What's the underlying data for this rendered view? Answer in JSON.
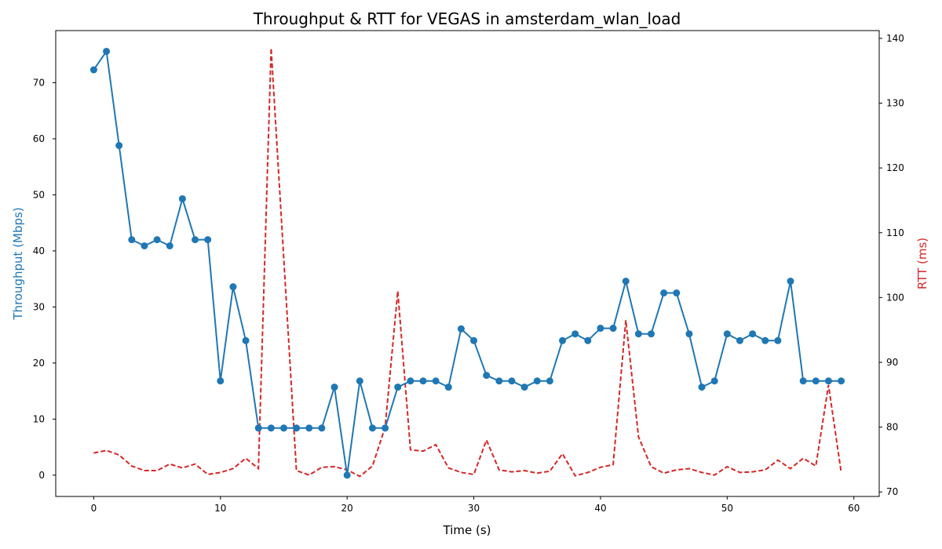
{
  "chart_data": {
    "type": "line",
    "title": "Throughput & RTT for VEGAS in amsterdam_wlan_load",
    "xlabel": "Time (s)",
    "ylabel_left": "Throughput (Mbps)",
    "ylabel_right": "RTT (ms)",
    "xlim": [
      -3,
      62
    ],
    "ylim_left": [
      -3.8,
      79.3
    ],
    "ylim_right": [
      69.3,
      141.2
    ],
    "x_ticks": [
      0,
      10,
      20,
      30,
      40,
      50,
      60
    ],
    "y_left_ticks": [
      0,
      10,
      20,
      30,
      40,
      50,
      60,
      70
    ],
    "y_right_ticks": [
      70,
      80,
      90,
      100,
      110,
      120,
      130,
      140
    ],
    "grid": false,
    "colors": {
      "throughput": "#1f77b4",
      "rtt": "#d62728"
    },
    "x": [
      0,
      1,
      2,
      3,
      4,
      5,
      6,
      7,
      8,
      9,
      10,
      11,
      12,
      13,
      14,
      15,
      16,
      17,
      18,
      19,
      20,
      21,
      22,
      23,
      24,
      25,
      26,
      27,
      28,
      29,
      30,
      31,
      32,
      33,
      34,
      35,
      36,
      37,
      38,
      39,
      40,
      41,
      42,
      43,
      44,
      45,
      46,
      47,
      48,
      49,
      50,
      51,
      52,
      53,
      54,
      55,
      56,
      57,
      58,
      59
    ],
    "series": [
      {
        "name": "Throughput (Mbps)",
        "axis": "left",
        "style": "solid-markers",
        "values": [
          72.3,
          75.6,
          58.8,
          42.0,
          40.9,
          42.0,
          40.9,
          49.3,
          42.0,
          42.0,
          16.8,
          33.6,
          24.0,
          8.4,
          8.4,
          8.4,
          8.4,
          8.4,
          8.4,
          15.7,
          0.0,
          16.8,
          8.4,
          8.4,
          15.7,
          16.8,
          16.8,
          16.8,
          15.7,
          26.1,
          24.0,
          17.8,
          16.8,
          16.8,
          15.7,
          16.8,
          16.8,
          24.0,
          25.2,
          24.0,
          26.2,
          26.2,
          34.6,
          25.2,
          25.2,
          32.5,
          32.5,
          25.2,
          15.7,
          16.8,
          25.2,
          24.0,
          25.2,
          24.0,
          24.0,
          34.6,
          16.8,
          16.8,
          16.8,
          16.8
        ]
      },
      {
        "name": "RTT (ms)",
        "axis": "right",
        "style": "dashed",
        "values": [
          76.0,
          76.4,
          75.7,
          74.0,
          73.3,
          73.3,
          74.3,
          73.7,
          74.3,
          72.7,
          73.0,
          73.6,
          75.2,
          73.6,
          138.5,
          106.0,
          73.3,
          72.6,
          73.8,
          73.9,
          73.4,
          72.4,
          74.0,
          80.0,
          101.0,
          76.5,
          76.3,
          77.3,
          73.7,
          73.0,
          72.7,
          78.0,
          73.4,
          73.1,
          73.3,
          72.9,
          73.2,
          75.9,
          72.5,
          73.0,
          73.8,
          74.2,
          96.5,
          78.5,
          73.9,
          72.9,
          73.4,
          73.6,
          73.0,
          72.6,
          73.9,
          73.0,
          73.1,
          73.4,
          74.9,
          73.6,
          75.2,
          74.0,
          86.5,
          73.0
        ]
      }
    ]
  }
}
